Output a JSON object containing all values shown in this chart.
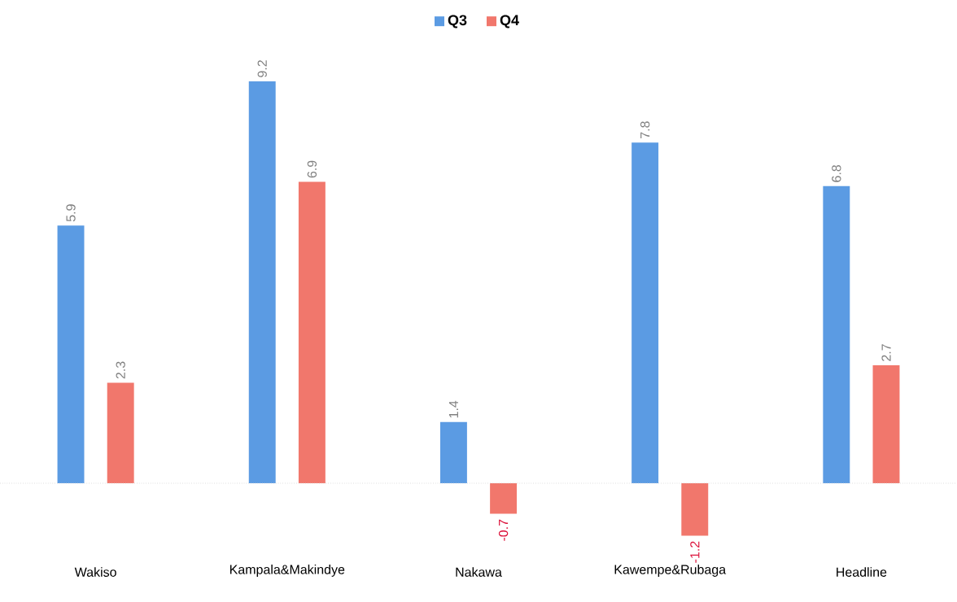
{
  "chart_data": {
    "type": "bar",
    "categories": [
      "Wakiso",
      "Kampala&Makindye",
      "Nakawa",
      "Kawempe&Rubaga",
      "Headline"
    ],
    "series": [
      {
        "name": "Q3",
        "color": "#5b9be3",
        "values": [
          5.9,
          9.2,
          1.4,
          7.8,
          6.8
        ]
      },
      {
        "name": "Q4",
        "color": "#f1776c",
        "values": [
          2.3,
          6.9,
          -0.7,
          -1.2,
          2.7
        ]
      }
    ],
    "ref_lines": [
      {
        "axis": "y",
        "value": 0,
        "color": "#cccccc",
        "line_style": "dotted"
      }
    ],
    "data_labels": true,
    "legend": "top",
    "tick_labels": "x"
  }
}
